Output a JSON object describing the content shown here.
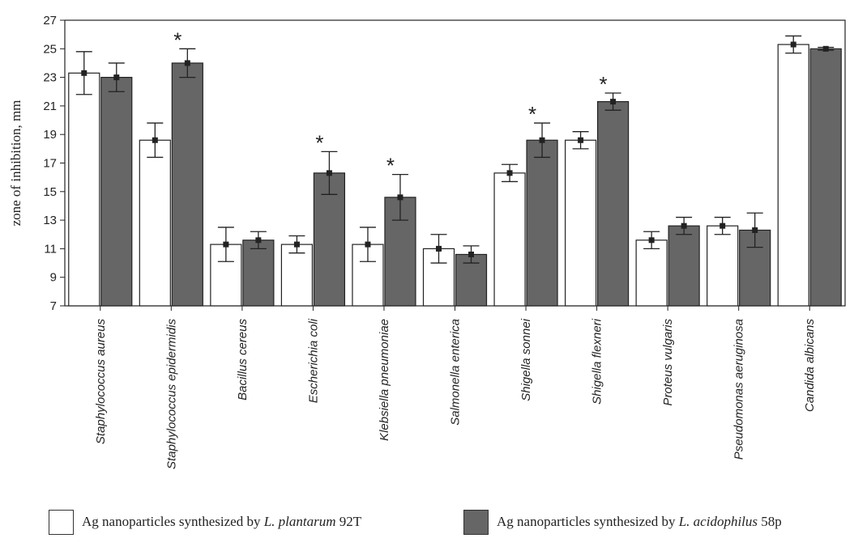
{
  "chart_data": {
    "type": "bar",
    "ylabel": "zone of inhibition, mm",
    "xlabel": "",
    "ylim": [
      7,
      27
    ],
    "yticks": [
      "7",
      "9",
      "11",
      "13",
      "15",
      "17",
      "19",
      "21",
      "23",
      "25",
      "27"
    ],
    "grid": false,
    "categories": [
      "Staphylococcus aureus",
      "Staphylococcus epidermidis",
      "Bacillus cereus",
      "Escherichia coli",
      "Klebsiella pneumoniae",
      "Salmonella enterica",
      "Shigella sonnei",
      "Shigella flexneri",
      "Proteus vulgaris",
      "Pseudomonas aeruginosa",
      "Candida albicans"
    ],
    "series": [
      {
        "name": "Ag nanoparticles synthesized by L. plantarum 92T",
        "color": "#ffffff",
        "values": [
          23.3,
          18.6,
          11.3,
          11.3,
          11.3,
          11.0,
          16.3,
          18.6,
          11.6,
          12.6,
          25.3
        ],
        "err": [
          1.5,
          1.2,
          1.2,
          0.6,
          1.2,
          1.0,
          0.6,
          0.6,
          0.6,
          0.6,
          0.6
        ]
      },
      {
        "name": "Ag nanoparticles synthesized by L. acidophilus 58p",
        "color": "#666666",
        "values": [
          23.0,
          24.0,
          11.6,
          16.3,
          14.6,
          10.6,
          18.6,
          21.3,
          12.6,
          12.3,
          25.0
        ],
        "err": [
          1.0,
          1.0,
          0.6,
          1.5,
          1.6,
          0.6,
          1.2,
          0.6,
          0.6,
          1.2,
          0.1
        ]
      }
    ],
    "significance_marker": "*",
    "significant": [
      false,
      true,
      false,
      true,
      true,
      false,
      true,
      true,
      false,
      false,
      false
    ]
  },
  "legend": {
    "white_prefix": "Ag nanoparticles synthesized by ",
    "white_species": "L. plantarum",
    "white_strain": " 92T",
    "gray_prefix": "Ag nanoparticles synthesized by ",
    "gray_species": "L. acidophilus",
    "gray_strain": " 58p"
  }
}
